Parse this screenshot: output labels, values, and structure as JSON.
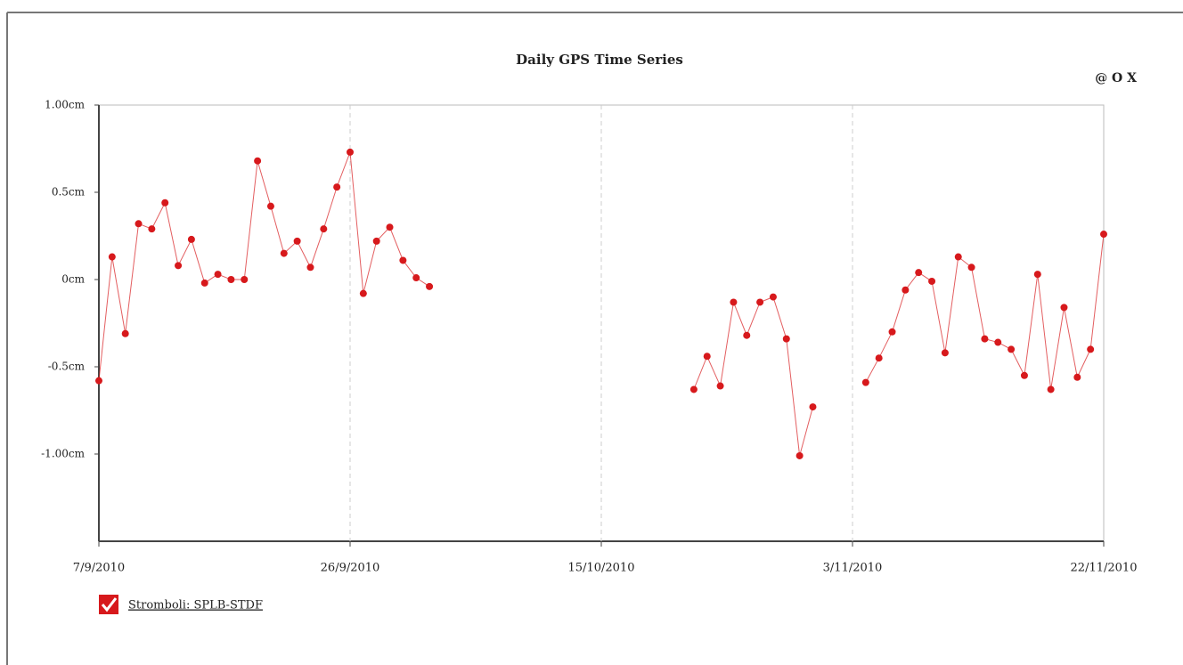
{
  "chart_data": {
    "type": "line",
    "title": "Daily GPS Time Series",
    "annotation": "@ O X",
    "x": [
      "2010-09-07",
      "2010-09-08",
      "2010-09-09",
      "2010-09-10",
      "2010-09-11",
      "2010-09-12",
      "2010-09-13",
      "2010-09-14",
      "2010-09-15",
      "2010-09-16",
      "2010-09-17",
      "2010-09-18",
      "2010-09-19",
      "2010-09-20",
      "2010-09-21",
      "2010-09-22",
      "2010-09-23",
      "2010-09-24",
      "2010-09-25",
      "2010-09-26",
      "2010-09-27",
      "2010-09-28",
      "2010-09-29",
      "2010-09-30",
      "2010-10-01",
      "2010-10-02",
      "2010-10-03",
      "2010-10-04",
      "2010-10-05",
      "2010-10-06",
      "2010-10-07",
      "2010-10-08",
      "2010-10-09",
      "2010-10-10",
      "2010-10-11",
      "2010-10-12",
      "2010-10-13",
      "2010-10-14",
      "2010-10-15",
      "2010-10-16",
      "2010-10-17",
      "2010-10-18",
      "2010-10-19",
      "2010-10-20",
      "2010-10-21",
      "2010-10-22",
      "2010-10-23",
      "2010-10-24",
      "2010-10-25",
      "2010-10-26",
      "2010-10-27",
      "2010-10-28",
      "2010-10-29",
      "2010-10-30",
      "2010-10-31",
      "2010-11-01",
      "2010-11-02",
      "2010-11-03",
      "2010-11-04",
      "2010-11-05",
      "2010-11-06",
      "2010-11-07",
      "2010-11-08",
      "2010-11-09",
      "2010-11-10",
      "2010-11-11",
      "2010-11-12",
      "2010-11-13",
      "2010-11-14",
      "2010-11-15",
      "2010-11-16",
      "2010-11-17",
      "2010-11-18",
      "2010-11-19",
      "2010-11-20",
      "2010-11-21",
      "2010-11-22"
    ],
    "series": [
      {
        "name": "Stromboli: SPLB-STDF",
        "color": "#d7191c",
        "values": [
          -0.58,
          0.13,
          -0.31,
          0.32,
          0.29,
          0.44,
          0.08,
          0.23,
          -0.02,
          0.03,
          0,
          0,
          0.68,
          0.42,
          0.15,
          0.22,
          0.07,
          0.29,
          0.53,
          0.73,
          -0.08,
          0.22,
          0.3,
          0.11,
          0.01,
          -0.04,
          null,
          null,
          null,
          null,
          null,
          null,
          null,
          null,
          null,
          null,
          null,
          null,
          null,
          null,
          null,
          null,
          null,
          null,
          null,
          -0.63,
          -0.44,
          -0.61,
          -0.13,
          -0.32,
          -0.13,
          -0.1,
          -0.34,
          -1.01,
          -0.73,
          null,
          null,
          null,
          -0.59,
          -0.45,
          -0.3,
          -0.06,
          0.04,
          -0.01,
          -0.42,
          0.13,
          0.07,
          -0.34,
          -0.36,
          -0.4,
          -0.55,
          0.03,
          -0.63,
          -0.16,
          -0.56,
          -0.4,
          0.26
        ]
      }
    ],
    "xlim": [
      "2010-09-07",
      "2010-11-22"
    ],
    "xticks": [
      {
        "value": "2010-09-07",
        "label": "7/9/2010"
      },
      {
        "value": "2010-09-26",
        "label": "26/9/2010"
      },
      {
        "value": "2010-10-15",
        "label": "15/10/2010"
      },
      {
        "value": "2010-11-03",
        "label": "3/11/2010"
      },
      {
        "value": "2010-11-22",
        "label": "22/11/2010"
      }
    ],
    "ylim": [
      -1.5,
      1.0
    ],
    "yticks": [
      {
        "value": 1.0,
        "label": "1.00cm"
      },
      {
        "value": 0.5,
        "label": "0.5cm"
      },
      {
        "value": 0,
        "label": "0cm"
      },
      {
        "value": -0.5,
        "label": "-0.5cm"
      },
      {
        "value": -1.0,
        "label": "-1.00cm"
      }
    ],
    "x_grid": true
  }
}
